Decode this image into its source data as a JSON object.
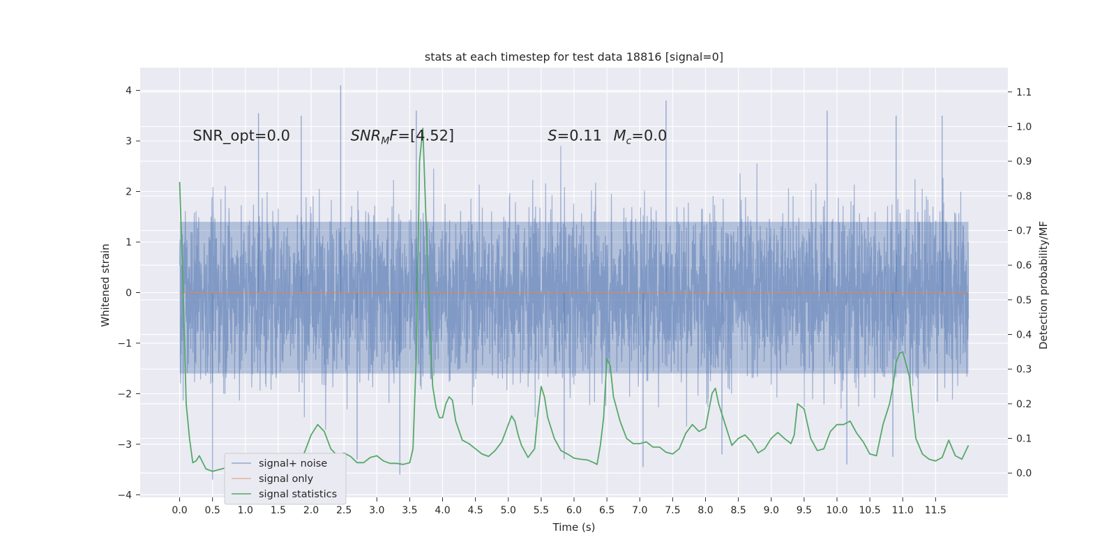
{
  "chart_data": {
    "type": "line",
    "title": "stats at each timestep for test data 18816 [signal=0]",
    "xlabel": "Time (s)",
    "ylabel": "Whitened strain",
    "y2label": "Detection probability/MF",
    "xlim": [
      -0.6,
      12.6
    ],
    "ylim": [
      -4.05,
      4.45
    ],
    "y2lim": [
      -0.07,
      1.17
    ],
    "grid": true,
    "legend_position": "lower-left",
    "x_ticks": [
      0.0,
      0.5,
      1.0,
      1.5,
      2.0,
      2.5,
      3.0,
      3.5,
      4.0,
      4.5,
      5.0,
      5.5,
      6.0,
      6.5,
      7.0,
      7.5,
      8.0,
      8.5,
      9.0,
      9.5,
      10.0,
      10.5,
      11.0,
      11.5
    ],
    "x_tick_labels": [
      "0.0",
      "0.5",
      "1.0",
      "1.5",
      "2.0",
      "2.5",
      "3.0",
      "3.5",
      "4.0",
      "4.5",
      "5.0",
      "5.5",
      "6.0",
      "6.5",
      "7.0",
      "7.5",
      "8.0",
      "8.5",
      "9.0",
      "9.5",
      "10.0",
      "10.5",
      "11.0",
      "11.5"
    ],
    "y_ticks": [
      -4,
      -3,
      -2,
      -1,
      0,
      1,
      2,
      3,
      4
    ],
    "y_tick_labels": [
      "−4",
      "−3",
      "−2",
      "−1",
      "0",
      "1",
      "2",
      "3",
      "4"
    ],
    "y2_ticks": [
      0.0,
      0.1,
      0.2,
      0.3,
      0.4,
      0.5,
      0.6,
      0.7,
      0.8,
      0.9,
      1.0,
      1.1
    ],
    "y2_tick_labels": [
      "0.0",
      "0.1",
      "0.2",
      "0.3",
      "0.4",
      "0.5",
      "0.6",
      "0.7",
      "0.8",
      "0.9",
      "1.0",
      "1.1"
    ],
    "annotations": [
      {
        "id": "snr-opt",
        "text": "SNR_opt=0.0",
        "x": 0.2,
        "y": 3.2
      },
      {
        "id": "snr-mf",
        "text": "SNR_MF=[4.52]",
        "x": 2.6,
        "y": 3.2
      },
      {
        "id": "s-stat",
        "text": "S=0.11",
        "x": 5.6,
        "y": 3.2
      },
      {
        "id": "mc-stat",
        "text": "M_c=0.0",
        "x": 6.6,
        "y": 3.2
      }
    ],
    "series": [
      {
        "name": "signal+ noise",
        "color": "#4c72b0",
        "axis": "left",
        "kind": "noise",
        "t_range": [
          0.0,
          12.0
        ],
        "core_band": [
          -1.6,
          1.4
        ],
        "extent": [
          -3.7,
          4.1
        ],
        "extreme_points": [
          [
            2.45,
            4.1
          ],
          [
            7.4,
            3.8
          ],
          [
            0.5,
            -3.7
          ],
          [
            3.35,
            -3.6
          ],
          [
            2.7,
            -3.3
          ],
          [
            10.15,
            -3.4
          ],
          [
            7.05,
            -3.45
          ],
          [
            5.85,
            -3.3
          ],
          [
            8.25,
            -3.2
          ],
          [
            10.85,
            -3.25
          ],
          [
            1.2,
            3.55
          ],
          [
            1.85,
            3.5
          ],
          [
            3.6,
            3.6
          ],
          [
            9.85,
            3.6
          ],
          [
            10.9,
            3.5
          ],
          [
            11.6,
            3.5
          ]
        ]
      },
      {
        "name": "signal only",
        "color": "#dd8452",
        "axis": "left",
        "x": [
          0.0,
          12.0
        ],
        "y": [
          0.0,
          0.0
        ]
      },
      {
        "name": "signal statistics",
        "color": "#55a868",
        "axis": "right",
        "x": [
          0.0,
          0.05,
          0.1,
          0.15,
          0.2,
          0.25,
          0.3,
          0.4,
          0.5,
          0.6,
          0.7,
          0.8,
          0.9,
          1.0,
          1.1,
          1.2,
          1.3,
          1.4,
          1.5,
          1.6,
          1.7,
          1.8,
          1.9,
          2.0,
          2.1,
          2.2,
          2.3,
          2.4,
          2.5,
          2.6,
          2.7,
          2.8,
          2.9,
          3.0,
          3.1,
          3.2,
          3.3,
          3.4,
          3.5,
          3.55,
          3.6,
          3.65,
          3.7,
          3.75,
          3.8,
          3.85,
          3.9,
          3.95,
          4.0,
          4.05,
          4.1,
          4.15,
          4.2,
          4.3,
          4.4,
          4.5,
          4.6,
          4.7,
          4.8,
          4.9,
          5.0,
          5.05,
          5.1,
          5.15,
          5.2,
          5.3,
          5.4,
          5.45,
          5.5,
          5.55,
          5.6,
          5.7,
          5.8,
          5.9,
          6.0,
          6.1,
          6.2,
          6.3,
          6.35,
          6.4,
          6.45,
          6.5,
          6.55,
          6.6,
          6.7,
          6.8,
          6.9,
          7.0,
          7.1,
          7.2,
          7.3,
          7.4,
          7.5,
          7.6,
          7.7,
          7.8,
          7.9,
          8.0,
          8.05,
          8.1,
          8.15,
          8.2,
          8.3,
          8.4,
          8.5,
          8.6,
          8.7,
          8.8,
          8.9,
          9.0,
          9.1,
          9.2,
          9.3,
          9.35,
          9.4,
          9.5,
          9.6,
          9.7,
          9.8,
          9.9,
          10.0,
          10.1,
          10.2,
          10.3,
          10.4,
          10.5,
          10.6,
          10.7,
          10.8,
          10.85,
          10.9,
          10.95,
          11.0,
          11.1,
          11.2,
          11.3,
          11.4,
          11.5,
          11.6,
          11.7,
          11.8,
          11.9,
          12.0
        ],
        "y": [
          0.84,
          0.55,
          0.2,
          0.1,
          0.03,
          0.035,
          0.05,
          0.012,
          0.005,
          0.01,
          0.015,
          0.005,
          0.01,
          0.018,
          0.012,
          0.02,
          0.03,
          0.018,
          0.035,
          0.038,
          0.022,
          0.022,
          0.06,
          0.11,
          0.14,
          0.12,
          0.07,
          0.05,
          0.058,
          0.048,
          0.03,
          0.03,
          0.045,
          0.05,
          0.035,
          0.028,
          0.028,
          0.025,
          0.03,
          0.07,
          0.34,
          0.9,
          0.995,
          0.72,
          0.45,
          0.25,
          0.19,
          0.16,
          0.16,
          0.2,
          0.22,
          0.21,
          0.15,
          0.095,
          0.085,
          0.07,
          0.055,
          0.048,
          0.065,
          0.09,
          0.14,
          0.165,
          0.15,
          0.11,
          0.08,
          0.045,
          0.07,
          0.17,
          0.25,
          0.22,
          0.16,
          0.1,
          0.065,
          0.055,
          0.043,
          0.04,
          0.038,
          0.03,
          0.025,
          0.08,
          0.16,
          0.33,
          0.31,
          0.22,
          0.15,
          0.1,
          0.085,
          0.085,
          0.09,
          0.075,
          0.075,
          0.06,
          0.055,
          0.07,
          0.115,
          0.14,
          0.12,
          0.13,
          0.18,
          0.23,
          0.245,
          0.2,
          0.14,
          0.08,
          0.1,
          0.11,
          0.09,
          0.058,
          0.07,
          0.1,
          0.117,
          0.1,
          0.085,
          0.11,
          0.2,
          0.185,
          0.1,
          0.065,
          0.07,
          0.12,
          0.14,
          0.14,
          0.15,
          0.115,
          0.09,
          0.055,
          0.05,
          0.14,
          0.2,
          0.25,
          0.32,
          0.345,
          0.35,
          0.28,
          0.1,
          0.055,
          0.04,
          0.035,
          0.045,
          0.095,
          0.05,
          0.04,
          0.08
        ]
      }
    ]
  }
}
